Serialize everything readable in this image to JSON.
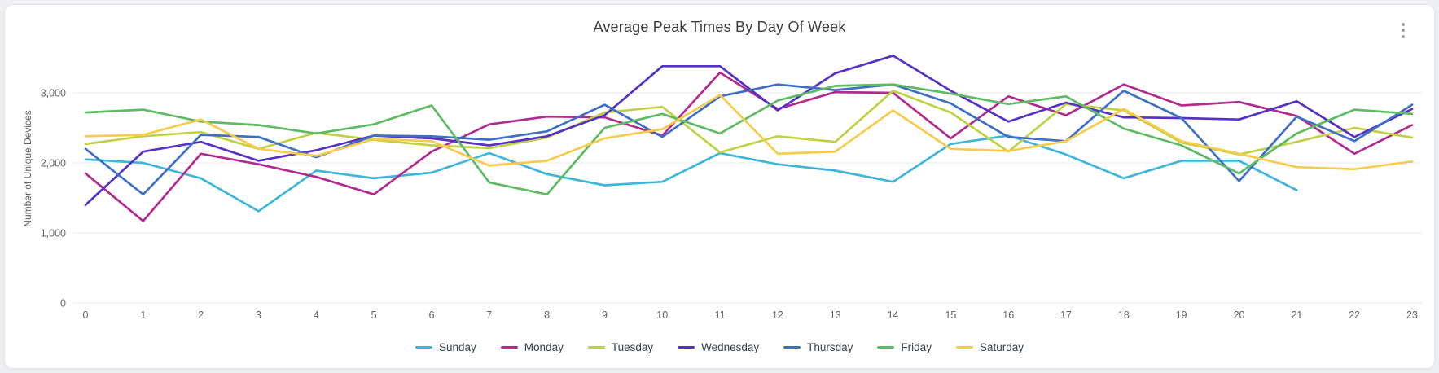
{
  "card": {
    "menu_icon": "kebab-vertical-menu"
  },
  "chart_data": {
    "type": "line",
    "title": "Average Peak Times By Day Of Week",
    "xlabel": "",
    "ylabel": "Number of Unique Devices",
    "x": [
      0,
      1,
      2,
      3,
      4,
      5,
      6,
      7,
      8,
      9,
      10,
      11,
      12,
      13,
      14,
      15,
      16,
      17,
      18,
      19,
      20,
      21,
      22,
      23
    ],
    "xlim": [
      0,
      23
    ],
    "ylim": [
      0,
      3700
    ],
    "yticks": [
      0,
      1000,
      2000,
      3000
    ],
    "ytick_labels": [
      "0",
      "1,000",
      "2,000",
      "3,000"
    ],
    "grid": true,
    "legend_position": "bottom",
    "series": [
      {
        "name": "Sunday",
        "color": "#3fb6d9",
        "values": [
          2050,
          2000,
          1780,
          1310,
          1890,
          1780,
          1860,
          2140,
          1840,
          1680,
          1730,
          2140,
          1980,
          1890,
          1730,
          2270,
          2390,
          2120,
          1780,
          2030,
          2030,
          1610,
          null,
          null
        ]
      },
      {
        "name": "Monday",
        "color": "#b32a8f",
        "values": [
          1850,
          1170,
          2130,
          1980,
          1800,
          1550,
          2160,
          2550,
          2660,
          2650,
          2390,
          3290,
          2770,
          3010,
          3000,
          2350,
          2950,
          2680,
          3120,
          2820,
          2870,
          2670,
          2130,
          2540
        ]
      },
      {
        "name": "Tuesday",
        "color": "#c0d144",
        "values": [
          2270,
          2380,
          2440,
          2200,
          2430,
          2330,
          2250,
          2210,
          2360,
          2720,
          2800,
          2150,
          2380,
          2300,
          3030,
          2720,
          2160,
          2840,
          2750,
          2290,
          2120,
          2300,
          2500,
          2360
        ]
      },
      {
        "name": "Wednesday",
        "color": "#5531c5",
        "values": [
          1400,
          2160,
          2300,
          2030,
          2180,
          2390,
          2350,
          2250,
          2380,
          2680,
          3380,
          3380,
          2750,
          3280,
          3530,
          3030,
          2590,
          2860,
          2650,
          2640,
          2620,
          2880,
          2370,
          2770
        ]
      },
      {
        "name": "Thursday",
        "color": "#3e6fc4",
        "values": [
          2200,
          1550,
          2400,
          2370,
          2080,
          2390,
          2380,
          2330,
          2450,
          2830,
          2370,
          2950,
          3120,
          3040,
          3120,
          2850,
          2370,
          2310,
          3030,
          2640,
          1740,
          2660,
          2310,
          2830
        ]
      },
      {
        "name": "Friday",
        "color": "#5dbb63",
        "values": [
          2720,
          2760,
          2590,
          2540,
          2420,
          2550,
          2820,
          1720,
          1550,
          2500,
          2700,
          2420,
          2890,
          3100,
          3120,
          2990,
          2840,
          2950,
          2490,
          2250,
          1850,
          2420,
          2760,
          2700
        ]
      },
      {
        "name": "Saturday",
        "color": "#f8cb4a",
        "values": [
          2380,
          2400,
          2620,
          2200,
          2100,
          2340,
          2310,
          1960,
          2030,
          2350,
          2480,
          2970,
          2130,
          2160,
          2750,
          2200,
          2170,
          2310,
          2770,
          2310,
          2130,
          1940,
          1910,
          2020
        ]
      }
    ]
  }
}
